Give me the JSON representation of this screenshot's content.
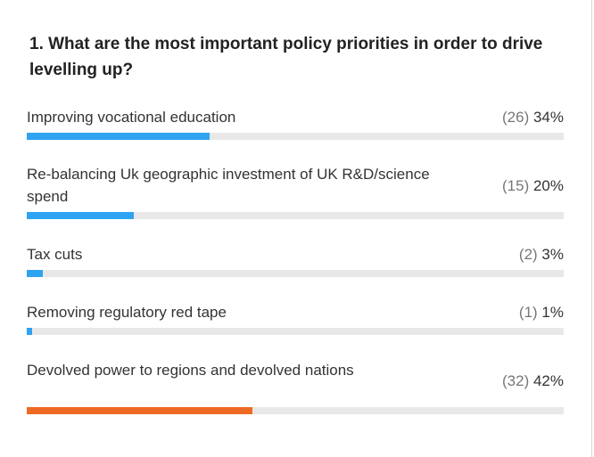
{
  "poll": {
    "question": "1. What are the most important policy priorities in order to drive levelling up?",
    "colors": {
      "bar_default": "#2ea3f2",
      "bar_leading": "#ee6a24",
      "track": "#e8e8e8"
    },
    "options": [
      {
        "label": "Improving vocational education",
        "count": "(26)",
        "percent": "34%",
        "fraction": 0.34,
        "leading": false
      },
      {
        "label": "Re-balancing Uk geographic investment of UK R&D/science spend",
        "count": "(15)",
        "percent": "20%",
        "fraction": 0.2,
        "leading": false
      },
      {
        "label": "Tax cuts",
        "count": "(2)",
        "percent": "3%",
        "fraction": 0.03,
        "leading": false
      },
      {
        "label": "Removing regulatory red tape",
        "count": "(1)",
        "percent": "1%",
        "fraction": 0.01,
        "leading": false
      },
      {
        "label": "Devolved power to regions and devolved nations",
        "count": "(32)",
        "percent": "42%",
        "fraction": 0.42,
        "leading": true
      }
    ]
  }
}
